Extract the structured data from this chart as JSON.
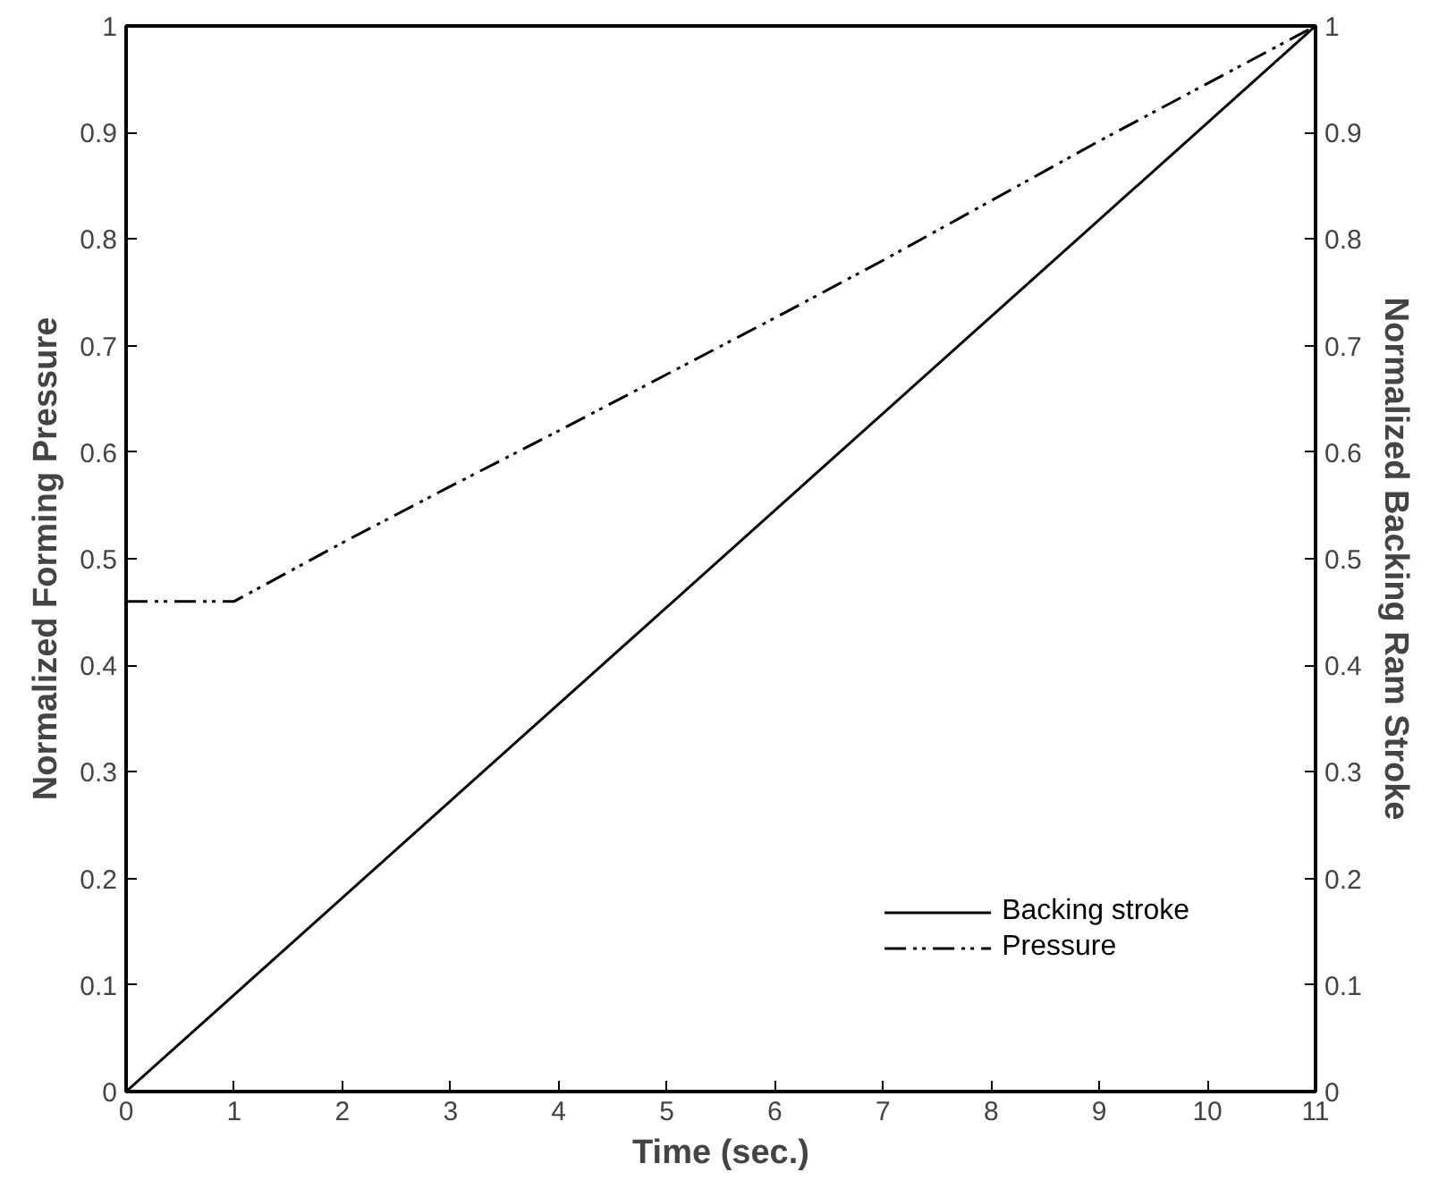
{
  "chart_data": {
    "type": "line",
    "xlabel": "Time (sec.)",
    "ylabel": "Normalized Forming Pressure",
    "y2label": "Normalized Backing Ram Stroke",
    "xlim": [
      0,
      11
    ],
    "xticks": [
      0,
      1,
      2,
      3,
      4,
      5,
      6,
      7,
      8,
      9,
      10,
      11
    ],
    "ylim": [
      0,
      1
    ],
    "yticks": [
      0,
      0.1,
      0.2,
      0.3,
      0.4,
      0.5,
      0.6,
      0.7,
      0.8,
      0.9,
      1
    ],
    "y2lim": [
      0,
      1
    ],
    "y2ticks": [
      0,
      0.1,
      0.2,
      0.3,
      0.4,
      0.5,
      0.6,
      0.7,
      0.8,
      0.9,
      1
    ],
    "series": [
      {
        "name": "Backing stroke",
        "color": "#000000",
        "line_style": "solid",
        "x": [
          0,
          11
        ],
        "values": [
          0,
          1
        ]
      },
      {
        "name": "Pressure",
        "color": "#000000",
        "line_style": "dashed",
        "x": [
          0,
          1,
          2,
          3,
          4,
          5,
          6,
          7,
          8,
          9,
          10,
          11
        ],
        "values": [
          0.46,
          0.46,
          0.515,
          0.568,
          0.62,
          0.673,
          0.726,
          0.78,
          0.836,
          0.892,
          0.946,
          1.0
        ]
      }
    ],
    "grid": false,
    "legend": "bottom right"
  }
}
